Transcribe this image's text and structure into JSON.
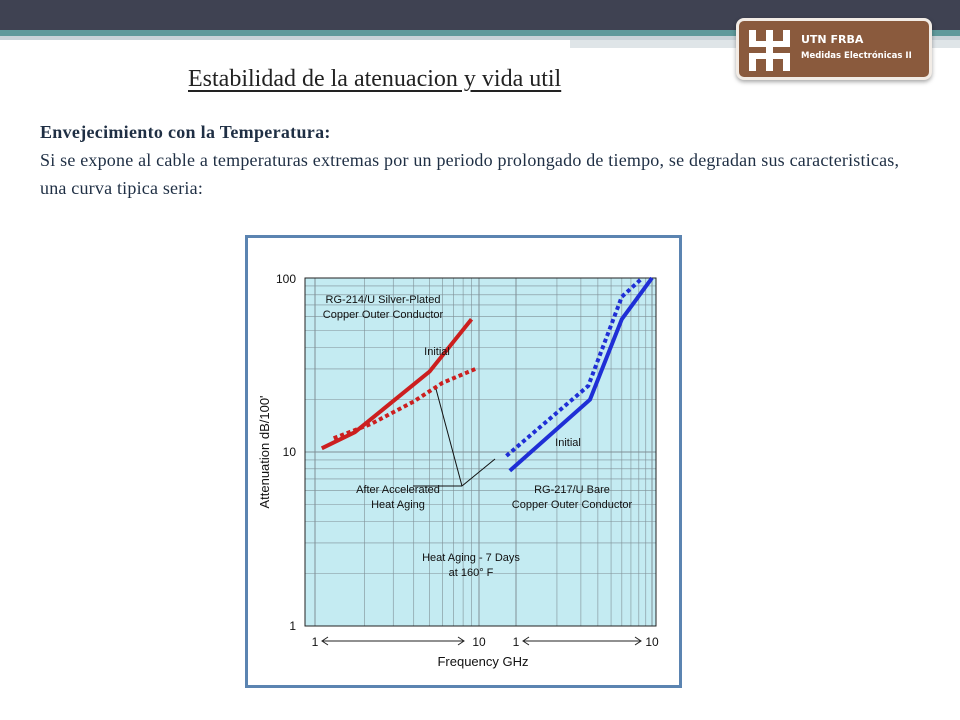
{
  "logo": {
    "line1": "UTN FRBA",
    "line2": "Medidas Electrónicas II",
    "icon": "utn-logo-icon"
  },
  "slide": {
    "title": "Estabilidad de la atenuacion y vida util",
    "subtitle": "Envejecimiento con la Temperatura:",
    "body": "Si se expone al cable a temperaturas extremas por un periodo prolongado de tiempo, se degradan sus caracteristicas, una curva tipica seria:"
  },
  "colors": {
    "topbar": "#3f4252",
    "plot_bg": "#c4ebf2",
    "red": "#cc1f1f",
    "blue": "#1f2fd6",
    "logo": "#8a5a3d"
  },
  "figure": {
    "ylabel": "Attenuation dB/100'",
    "xlabel": "Frequency GHz",
    "ytick_labels": [
      "100",
      "10",
      "1"
    ],
    "xtick_labels": [
      "1",
      "10",
      "1",
      "10"
    ],
    "ann_rg214_1": "RG-214/U Silver-Plated",
    "ann_rg214_2": "Copper Outer Conductor",
    "ann_initial_red": "Initial",
    "ann_initial_blue": "Initial",
    "ann_after_1": "After Accelerated",
    "ann_after_2": "Heat Aging",
    "ann_rg217_1": "RG-217/U Bare",
    "ann_rg217_2": "Copper Outer Conductor",
    "ann_heat_1": "Heat Aging - 7 Days",
    "ann_heat_2": "at 160° F"
  },
  "chart_data": {
    "type": "line",
    "yscale": "log",
    "ylim": [
      1,
      100
    ],
    "ylabel": "Attenuation dB/100'",
    "xlabel": "Frequency GHz",
    "panels": [
      {
        "cable": "RG-214/U Silver-Plated Copper Outer Conductor",
        "xscale": "log",
        "xlim": [
          1,
          10
        ],
        "series": [
          {
            "name": "Initial",
            "style": "solid",
            "color": "#cc1f1f",
            "x": [
              1.1,
              1.75,
              5.0,
              9.0
            ],
            "y": [
              10.5,
              13.0,
              29.0,
              58.0
            ]
          },
          {
            "name": "After Accelerated Heat Aging",
            "style": "dotted",
            "color": "#cc1f1f",
            "x": [
              1.3,
              2.2,
              4.0,
              6.0,
              9.5
            ],
            "y": [
              12.0,
              14.5,
              19.5,
              25.0,
              30.0
            ]
          }
        ]
      },
      {
        "cable": "RG-217/U Bare Copper Outer Conductor",
        "xscale": "log",
        "xlim": [
          1,
          10
        ],
        "series": [
          {
            "name": "Initial",
            "style": "solid",
            "color": "#1f2fd6",
            "x": [
              0.9,
              3.5,
              6.0,
              10.0
            ],
            "y": [
              7.8,
              20.0,
              58.0,
              100.0
            ]
          },
          {
            "name": "After Accelerated Heat Aging",
            "style": "dotted",
            "color": "#1f2fd6",
            "x": [
              0.85,
              3.4,
              6.0,
              8.5
            ],
            "y": [
              9.5,
              24.0,
              78.0,
              100.0
            ]
          }
        ]
      }
    ]
  }
}
